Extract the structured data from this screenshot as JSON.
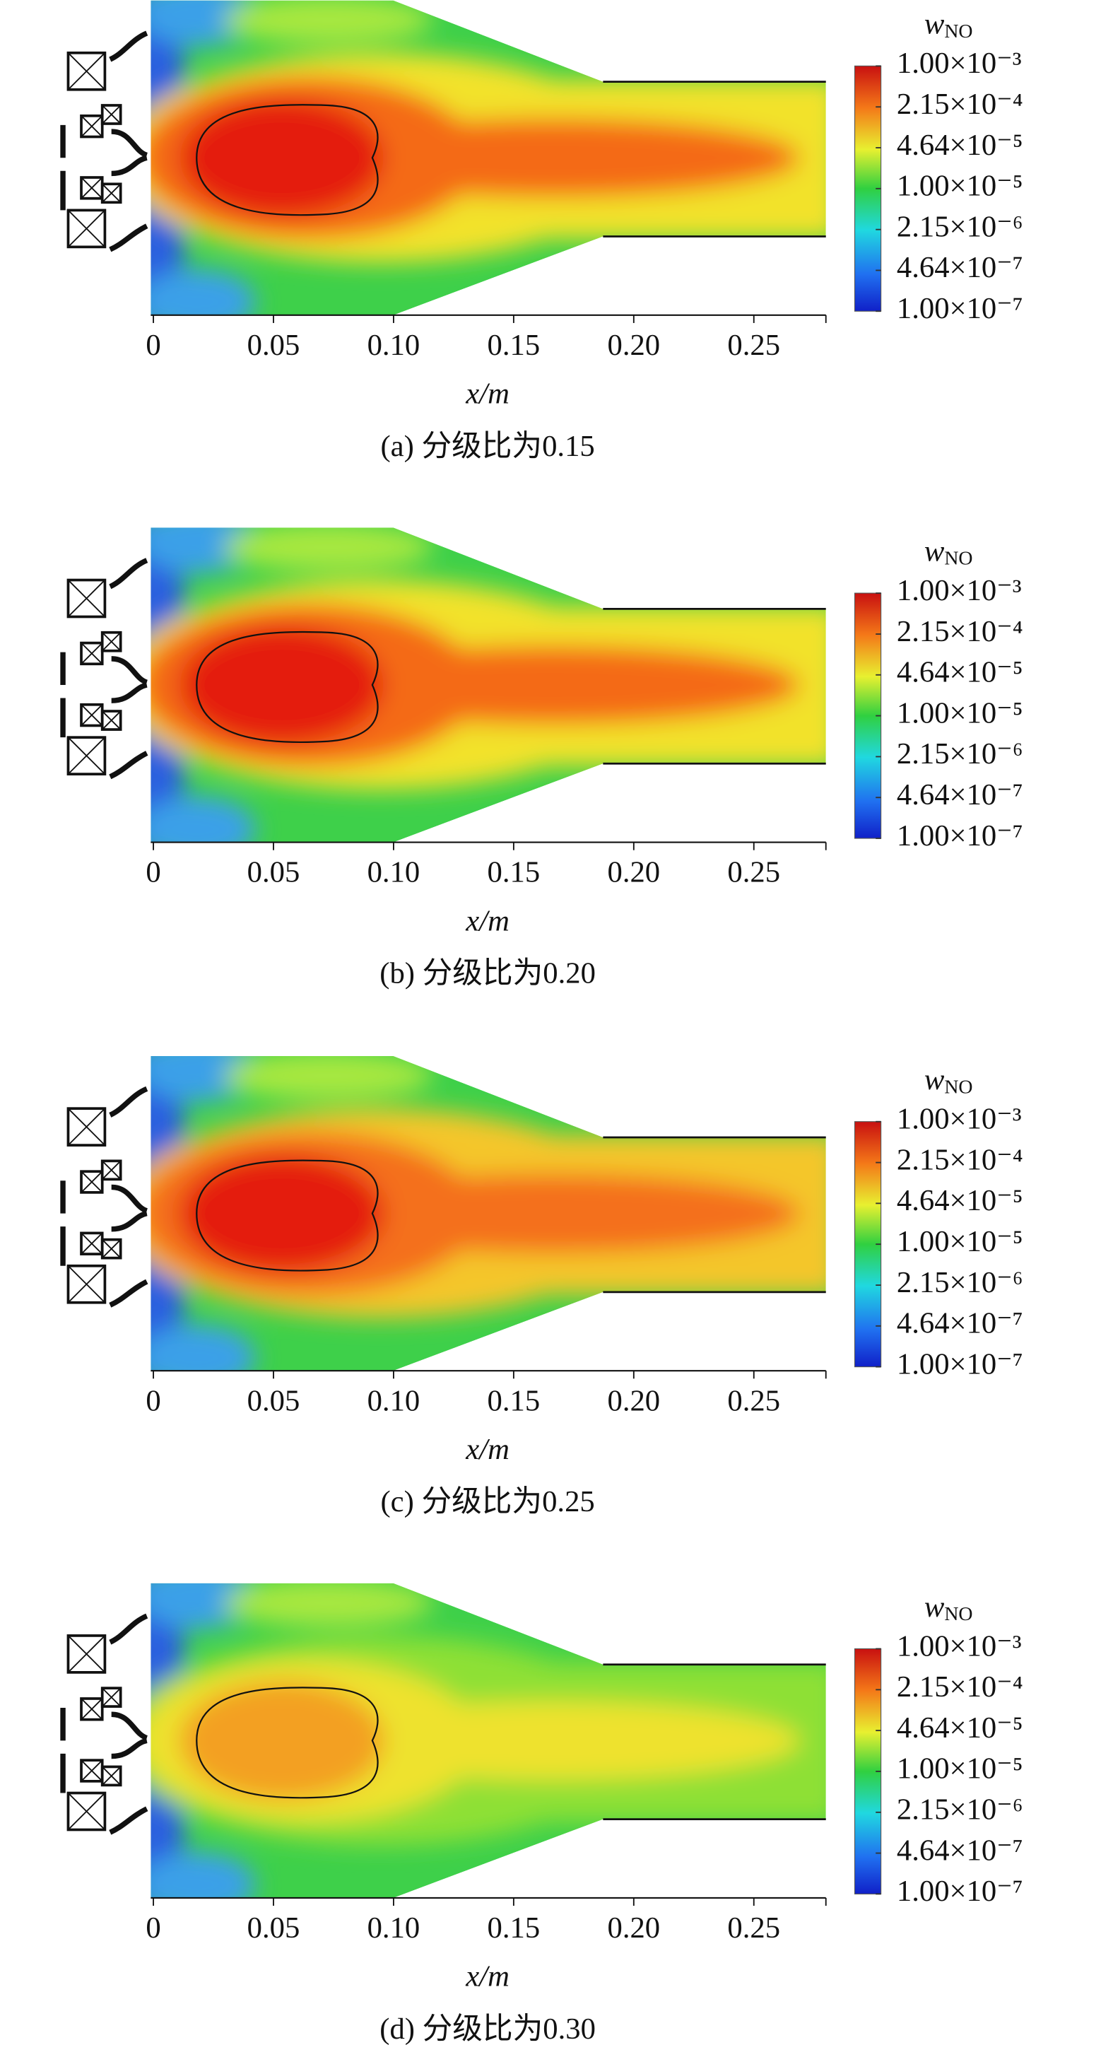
{
  "chart_data": [
    {
      "type": "contour",
      "caption": "(a) 分级比为0.15",
      "xlabel": "x/m",
      "colorbar_label": {
        "symbol": "w",
        "subscript": "NO"
      },
      "xlim": [
        0,
        0.28
      ],
      "xticks": [
        0,
        0.05,
        {
          "value": 0.1,
          "label": "0.10"
        },
        0.15,
        {
          "value": 0.2,
          "label": "0.20"
        },
        0.25
      ],
      "clim": [
        1e-07,
        0.001
      ],
      "log_scale": true,
      "cticks": [
        {
          "value": 0.001,
          "label": "1.00×10⁻³"
        },
        {
          "value": 0.000215,
          "label": "2.15×10⁻⁴"
        },
        {
          "value": 4.64e-05,
          "label": "4.64×10⁻⁵"
        },
        {
          "value": 1e-05,
          "label": "1.00×10⁻⁵"
        },
        {
          "value": 2.15e-06,
          "label": "2.15×10⁻⁶"
        },
        {
          "value": 4.64e-07,
          "label": "4.64×10⁻⁷"
        },
        {
          "value": 1e-07,
          "label": "1.00×10⁻⁷"
        }
      ],
      "field_colors": {
        "core": "#e41a10",
        "halo": "#f46a18",
        "tail": "#f2e22a"
      }
    },
    {
      "type": "contour",
      "caption": "(b) 分级比为0.20",
      "xlabel": "x/m",
      "colorbar_label": {
        "symbol": "w",
        "subscript": "NO"
      },
      "xlim": [
        0,
        0.28
      ],
      "xticks": [
        0,
        0.05,
        {
          "value": 0.1,
          "label": "0.10"
        },
        0.15,
        {
          "value": 0.2,
          "label": "0.20"
        },
        0.25
      ],
      "clim": [
        1e-07,
        0.001
      ],
      "log_scale": true,
      "cticks": [
        {
          "value": 0.001,
          "label": "1.00×10⁻³"
        },
        {
          "value": 0.000215,
          "label": "2.15×10⁻⁴"
        },
        {
          "value": 4.64e-05,
          "label": "4.64×10⁻⁵"
        },
        {
          "value": 1e-05,
          "label": "1.00×10⁻⁵"
        },
        {
          "value": 2.15e-06,
          "label": "2.15×10⁻⁶"
        },
        {
          "value": 4.64e-07,
          "label": "4.64×10⁻⁷"
        },
        {
          "value": 1e-07,
          "label": "1.00×10⁻⁷"
        }
      ],
      "field_colors": {
        "core": "#e41a10",
        "halo": "#f46a18",
        "tail": "#f2e22a"
      }
    },
    {
      "type": "contour",
      "caption": "(c) 分级比为0.25",
      "xlabel": "x/m",
      "colorbar_label": {
        "symbol": "w",
        "subscript": "NO"
      },
      "xlim": [
        0,
        0.28
      ],
      "xticks": [
        0,
        0.05,
        {
          "value": 0.1,
          "label": "0.10"
        },
        0.15,
        {
          "value": 0.2,
          "label": "0.20"
        },
        0.25
      ],
      "clim": [
        1e-07,
        0.001
      ],
      "log_scale": true,
      "cticks": [
        {
          "value": 0.001,
          "label": "1.00×10⁻³"
        },
        {
          "value": 0.000215,
          "label": "2.15×10⁻⁴"
        },
        {
          "value": 4.64e-05,
          "label": "4.64×10⁻⁵"
        },
        {
          "value": 1e-05,
          "label": "1.00×10⁻⁵"
        },
        {
          "value": 2.15e-06,
          "label": "2.15×10⁻⁶"
        },
        {
          "value": 4.64e-07,
          "label": "4.64×10⁻⁷"
        },
        {
          "value": 1e-07,
          "label": "1.00×10⁻⁷"
        }
      ],
      "field_colors": {
        "core": "#e41a10",
        "halo": "#f4701a",
        "tail": "#f4c62a"
      }
    },
    {
      "type": "contour",
      "caption": "(d) 分级比为0.30",
      "xlabel": "x/m",
      "colorbar_label": {
        "symbol": "w",
        "subscript": "NO"
      },
      "xlim": [
        0,
        0.28
      ],
      "xticks": [
        0,
        0.05,
        {
          "value": 0.1,
          "label": "0.10"
        },
        0.15,
        {
          "value": 0.2,
          "label": "0.20"
        },
        0.25
      ],
      "clim": [
        1e-07,
        0.001
      ],
      "log_scale": true,
      "cticks": [
        {
          "value": 0.001,
          "label": "1.00×10⁻³"
        },
        {
          "value": 0.000215,
          "label": "2.15×10⁻⁴"
        },
        {
          "value": 4.64e-05,
          "label": "4.64×10⁻⁵"
        },
        {
          "value": 1e-05,
          "label": "1.00×10⁻⁵"
        },
        {
          "value": 2.15e-06,
          "label": "2.15×10⁻⁶"
        },
        {
          "value": 4.64e-07,
          "label": "4.64×10⁻⁷"
        },
        {
          "value": 1e-07,
          "label": "1.00×10⁻⁷"
        }
      ],
      "field_colors": {
        "core": "#f3a024",
        "halo": "#eee22e",
        "tail": "#8ee034"
      }
    }
  ]
}
